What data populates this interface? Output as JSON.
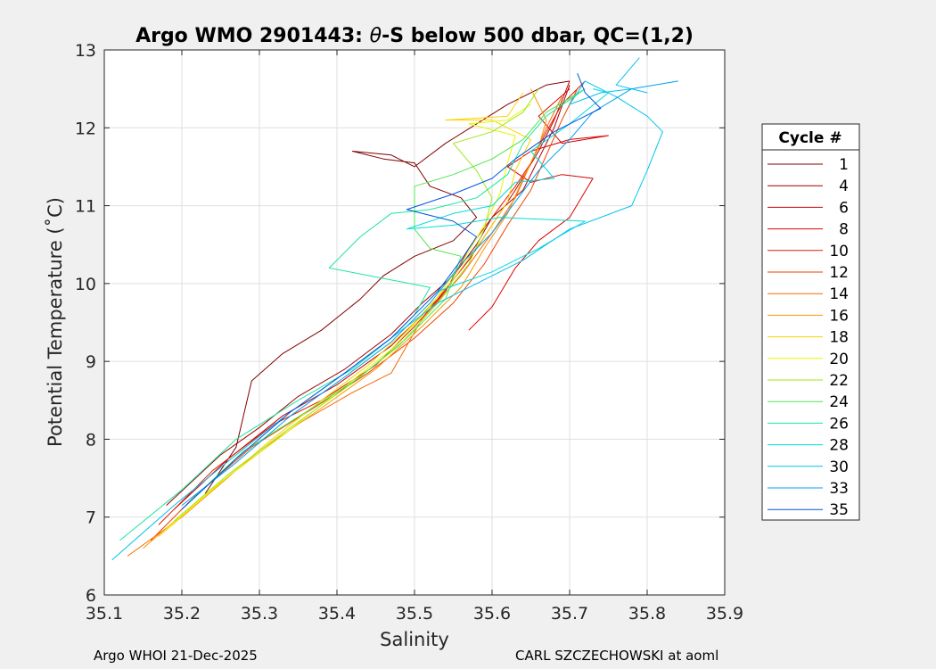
{
  "chart_data": {
    "type": "line",
    "title_prefix": "Argo WMO 2901443: ",
    "title_symbol": "θ",
    "title_suffix": "-S below 500 dbar,  QC=(1,2)",
    "xlabel": "Salinity",
    "ylabel": "Potential Temperature (˚C)",
    "xlim": [
      35.1,
      35.9
    ],
    "ylim": [
      6,
      13
    ],
    "xticks": [
      "35.1",
      "35.2",
      "35.3",
      "35.4",
      "35.5",
      "35.6",
      "35.7",
      "35.8",
      "35.9"
    ],
    "yticks": [
      "6",
      "7",
      "8",
      "9",
      "10",
      "11",
      "12",
      "13"
    ],
    "grid": true,
    "legend_title": "Cycle #",
    "legend_position": "right",
    "series": [
      {
        "name": "1",
        "color": "#800000",
        "values": [
          [
            35.23,
            7.3
          ],
          [
            35.27,
            7.9
          ],
          [
            35.29,
            8.75
          ],
          [
            35.33,
            9.1
          ],
          [
            35.38,
            9.4
          ],
          [
            35.43,
            9.8
          ],
          [
            35.46,
            10.1
          ],
          [
            35.5,
            10.35
          ],
          [
            35.55,
            10.55
          ],
          [
            35.58,
            10.85
          ],
          [
            35.56,
            11.1
          ],
          [
            35.52,
            11.25
          ],
          [
            35.5,
            11.55
          ],
          [
            35.46,
            11.6
          ],
          [
            35.42,
            11.7
          ],
          [
            35.47,
            11.65
          ],
          [
            35.5,
            11.5
          ],
          [
            35.54,
            11.8
          ],
          [
            35.58,
            12.05
          ],
          [
            35.62,
            12.3
          ],
          [
            35.67,
            12.55
          ],
          [
            35.7,
            12.6
          ]
        ]
      },
      {
        "name": "4",
        "color": "#a30000",
        "values": [
          [
            35.18,
            7.15
          ],
          [
            35.25,
            7.8
          ],
          [
            35.3,
            8.15
          ],
          [
            35.35,
            8.55
          ],
          [
            35.41,
            8.9
          ],
          [
            35.47,
            9.35
          ],
          [
            35.51,
            9.75
          ],
          [
            35.55,
            10.1
          ],
          [
            35.58,
            10.5
          ],
          [
            35.6,
            10.85
          ],
          [
            35.64,
            11.2
          ],
          [
            35.66,
            11.6
          ],
          [
            35.68,
            12.0
          ],
          [
            35.7,
            12.55
          ]
        ]
      },
      {
        "name": "6",
        "color": "#c20000",
        "values": [
          [
            35.19,
            7.1
          ],
          [
            35.26,
            7.75
          ],
          [
            35.33,
            8.3
          ],
          [
            35.4,
            8.7
          ],
          [
            35.47,
            9.2
          ],
          [
            35.53,
            9.8
          ],
          [
            35.57,
            10.3
          ],
          [
            35.6,
            10.75
          ],
          [
            35.63,
            11.2
          ],
          [
            35.66,
            11.7
          ],
          [
            35.68,
            12.1
          ],
          [
            35.7,
            12.6
          ]
        ]
      },
      {
        "name": "8",
        "color": "#d90000",
        "values": [
          [
            35.57,
            9.4
          ],
          [
            35.6,
            9.7
          ],
          [
            35.63,
            10.2
          ],
          [
            35.66,
            10.55
          ],
          [
            35.7,
            10.85
          ],
          [
            35.73,
            11.35
          ],
          [
            35.69,
            11.4
          ],
          [
            35.65,
            11.3
          ],
          [
            35.62,
            11.5
          ],
          [
            35.65,
            11.7
          ],
          [
            35.7,
            11.85
          ],
          [
            35.75,
            11.9
          ],
          [
            35.69,
            11.8
          ],
          [
            35.66,
            12.15
          ],
          [
            35.7,
            12.5
          ]
        ]
      },
      {
        "name": "10",
        "color": "#e61c00",
        "values": [
          [
            35.17,
            6.9
          ],
          [
            35.24,
            7.6
          ],
          [
            35.32,
            8.2
          ],
          [
            35.38,
            8.5
          ],
          [
            35.45,
            8.95
          ],
          [
            35.5,
            9.45
          ],
          [
            35.54,
            9.9
          ],
          [
            35.57,
            10.45
          ],
          [
            35.6,
            10.85
          ],
          [
            35.63,
            11.25
          ],
          [
            35.65,
            11.55
          ],
          [
            35.67,
            11.95
          ],
          [
            35.69,
            12.3
          ],
          [
            35.72,
            12.6
          ]
        ]
      },
      {
        "name": "12",
        "color": "#ed4200",
        "values": [
          [
            35.16,
            6.7
          ],
          [
            35.22,
            7.3
          ],
          [
            35.29,
            7.9
          ],
          [
            35.37,
            8.4
          ],
          [
            35.44,
            8.85
          ],
          [
            35.5,
            9.3
          ],
          [
            35.55,
            9.75
          ],
          [
            35.59,
            10.25
          ],
          [
            35.62,
            10.75
          ],
          [
            35.65,
            11.2
          ],
          [
            35.67,
            11.65
          ],
          [
            35.69,
            12.1
          ],
          [
            35.71,
            12.5
          ]
        ]
      },
      {
        "name": "14",
        "color": "#f56900",
        "values": [
          [
            35.13,
            6.5
          ],
          [
            35.2,
            7.0
          ],
          [
            35.27,
            7.6
          ],
          [
            35.35,
            8.2
          ],
          [
            35.42,
            8.6
          ],
          [
            35.47,
            8.85
          ],
          [
            35.51,
            9.55
          ],
          [
            35.56,
            10.1
          ],
          [
            35.6,
            10.65
          ],
          [
            35.63,
            11.1
          ],
          [
            35.65,
            11.55
          ],
          [
            35.67,
            12.0
          ],
          [
            35.69,
            12.4
          ]
        ]
      },
      {
        "name": "16",
        "color": "#fa9600",
        "values": [
          [
            35.15,
            6.6
          ],
          [
            35.22,
            7.2
          ],
          [
            35.3,
            7.85
          ],
          [
            35.38,
            8.4
          ],
          [
            35.45,
            8.9
          ],
          [
            35.51,
            9.45
          ],
          [
            35.56,
            9.95
          ],
          [
            35.59,
            10.45
          ],
          [
            35.62,
            10.9
          ],
          [
            35.64,
            11.35
          ],
          [
            35.66,
            11.75
          ],
          [
            35.67,
            12.1
          ],
          [
            35.65,
            12.5
          ]
        ]
      },
      {
        "name": "18",
        "color": "#ffd100",
        "values": [
          [
            35.17,
            6.75
          ],
          [
            35.24,
            7.35
          ],
          [
            35.31,
            7.95
          ],
          [
            35.38,
            8.5
          ],
          [
            35.44,
            8.95
          ],
          [
            35.5,
            9.5
          ],
          [
            35.55,
            10.05
          ],
          [
            35.59,
            10.6
          ],
          [
            35.62,
            11.05
          ],
          [
            35.63,
            11.45
          ],
          [
            35.65,
            11.85
          ],
          [
            35.6,
            12.1
          ],
          [
            35.54,
            12.1
          ],
          [
            35.62,
            12.15
          ],
          [
            35.64,
            12.45
          ]
        ]
      },
      {
        "name": "20",
        "color": "#e6f700",
        "values": [
          [
            35.18,
            6.85
          ],
          [
            35.25,
            7.45
          ],
          [
            35.33,
            8.05
          ],
          [
            35.4,
            8.6
          ],
          [
            35.47,
            9.15
          ],
          [
            35.52,
            9.7
          ],
          [
            35.56,
            10.25
          ],
          [
            35.59,
            10.75
          ],
          [
            35.61,
            11.15
          ],
          [
            35.62,
            11.55
          ],
          [
            35.63,
            11.9
          ],
          [
            35.57,
            12.05
          ],
          [
            35.62,
            12.1
          ],
          [
            35.65,
            12.3
          ]
        ]
      },
      {
        "name": "22",
        "color": "#9ee61a",
        "values": [
          [
            35.19,
            6.95
          ],
          [
            35.26,
            7.55
          ],
          [
            35.34,
            8.15
          ],
          [
            35.41,
            8.65
          ],
          [
            35.48,
            9.2
          ],
          [
            35.53,
            9.75
          ],
          [
            35.57,
            10.25
          ],
          [
            35.59,
            10.7
          ],
          [
            35.6,
            11.1
          ],
          [
            35.58,
            11.45
          ],
          [
            35.55,
            11.8
          ],
          [
            35.6,
            11.95
          ],
          [
            35.64,
            12.2
          ],
          [
            35.66,
            12.5
          ]
        ]
      },
      {
        "name": "24",
        "color": "#4ee64e",
        "values": [
          [
            35.21,
            7.2
          ],
          [
            35.28,
            7.85
          ],
          [
            35.36,
            8.35
          ],
          [
            35.43,
            8.8
          ],
          [
            35.49,
            9.3
          ],
          [
            35.54,
            9.8
          ],
          [
            35.56,
            10.35
          ],
          [
            35.52,
            10.45
          ],
          [
            35.5,
            10.7
          ],
          [
            35.5,
            11.25
          ],
          [
            35.55,
            11.4
          ],
          [
            35.6,
            11.6
          ],
          [
            35.64,
            11.85
          ],
          [
            35.67,
            12.2
          ],
          [
            35.72,
            12.5
          ]
        ]
      },
      {
        "name": "26",
        "color": "#1ae6a0",
        "values": [
          [
            35.12,
            6.7
          ],
          [
            35.2,
            7.35
          ],
          [
            35.27,
            8.0
          ],
          [
            35.35,
            8.5
          ],
          [
            35.42,
            8.9
          ],
          [
            35.47,
            9.3
          ],
          [
            35.5,
            9.6
          ],
          [
            35.52,
            9.95
          ],
          [
            35.39,
            10.2
          ],
          [
            35.43,
            10.6
          ],
          [
            35.47,
            10.9
          ],
          [
            35.52,
            10.95
          ],
          [
            35.58,
            11.1
          ],
          [
            35.62,
            11.4
          ],
          [
            35.64,
            11.8
          ],
          [
            35.67,
            12.15
          ],
          [
            35.72,
            12.5
          ]
        ]
      },
      {
        "name": "28",
        "color": "#00dcdc",
        "values": [
          [
            35.53,
            9.9
          ],
          [
            35.6,
            10.15
          ],
          [
            35.66,
            10.45
          ],
          [
            35.72,
            10.8
          ],
          [
            35.61,
            10.85
          ],
          [
            35.55,
            10.75
          ],
          [
            35.49,
            10.7
          ],
          [
            35.55,
            10.9
          ],
          [
            35.6,
            11.0
          ],
          [
            35.63,
            11.3
          ],
          [
            35.68,
            11.35
          ],
          [
            35.65,
            11.7
          ],
          [
            35.7,
            12.05
          ],
          [
            35.75,
            12.45
          ],
          [
            35.73,
            12.5
          ]
        ]
      },
      {
        "name": "30",
        "color": "#00c3ee",
        "values": [
          [
            35.11,
            6.45
          ],
          [
            35.19,
            7.15
          ],
          [
            35.27,
            7.8
          ],
          [
            35.34,
            8.35
          ],
          [
            35.41,
            8.85
          ],
          [
            35.47,
            9.3
          ],
          [
            35.53,
            9.75
          ],
          [
            35.58,
            10.0
          ],
          [
            35.64,
            10.3
          ],
          [
            35.7,
            10.7
          ],
          [
            35.78,
            11.0
          ],
          [
            35.8,
            11.45
          ],
          [
            35.82,
            11.95
          ],
          [
            35.8,
            12.15
          ],
          [
            35.76,
            12.4
          ],
          [
            35.72,
            12.6
          ],
          [
            35.7,
            12.3
          ],
          [
            35.74,
            12.45
          ],
          [
            35.78,
            12.5
          ],
          [
            35.8,
            12.45
          ],
          [
            35.76,
            12.55
          ],
          [
            35.79,
            12.9
          ]
        ]
      },
      {
        "name": "33",
        "color": "#00a0f0",
        "values": [
          [
            35.2,
            7.15
          ],
          [
            35.27,
            7.7
          ],
          [
            35.34,
            8.3
          ],
          [
            35.41,
            8.8
          ],
          [
            35.47,
            9.25
          ],
          [
            35.52,
            9.75
          ],
          [
            35.56,
            10.25
          ],
          [
            35.6,
            10.65
          ],
          [
            35.63,
            11.05
          ],
          [
            35.66,
            11.45
          ],
          [
            35.7,
            11.85
          ],
          [
            35.73,
            12.2
          ],
          [
            35.78,
            12.5
          ],
          [
            35.84,
            12.6
          ]
        ]
      },
      {
        "name": "35",
        "color": "#0055e0",
        "values": [
          [
            35.2,
            7.1
          ],
          [
            35.27,
            7.75
          ],
          [
            35.34,
            8.35
          ],
          [
            35.41,
            8.85
          ],
          [
            35.47,
            9.3
          ],
          [
            35.5,
            9.6
          ],
          [
            35.53,
            9.9
          ],
          [
            35.56,
            10.3
          ],
          [
            35.58,
            10.6
          ],
          [
            35.55,
            10.8
          ],
          [
            35.49,
            10.95
          ],
          [
            35.55,
            11.15
          ],
          [
            35.6,
            11.35
          ],
          [
            35.63,
            11.6
          ],
          [
            35.68,
            11.95
          ],
          [
            35.74,
            12.25
          ],
          [
            35.72,
            12.45
          ],
          [
            35.71,
            12.7
          ]
        ]
      }
    ]
  },
  "footer": {
    "left": "Argo WHOI 21-Dec-2025",
    "right": "CARL SZCZECHOWSKI at aoml"
  }
}
